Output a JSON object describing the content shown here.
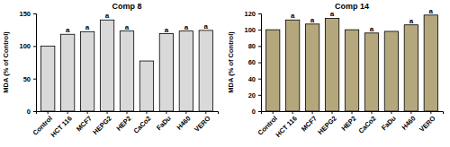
{
  "chart_data": [
    {
      "type": "bar",
      "title": "Comp 8",
      "y_label": "MDA (% of Control)",
      "categories": [
        "Control",
        "HCT 116",
        "MCF7",
        "HEPG2",
        "HEP2",
        "CaCo2",
        "FaDu",
        "H460",
        "VERO"
      ],
      "values": [
        100,
        118,
        122,
        140,
        123,
        77,
        119,
        123,
        124
      ],
      "annotations": [
        null,
        "a",
        "a",
        "a",
        "a",
        null,
        "a",
        "a",
        "a"
      ],
      "color": "#d9d9d9",
      "ylim": [
        0,
        150
      ],
      "yticks": [
        0,
        50,
        100,
        150
      ],
      "grid": false
    },
    {
      "type": "bar",
      "title": "Comp 14",
      "y_label": "MDA (% of Control)",
      "categories": [
        "Control",
        "HCT 116",
        "MCF7",
        "HEPG2",
        "HEP2",
        "CaCo2",
        "FaDu",
        "H460",
        "VERO"
      ],
      "values": [
        100,
        112,
        107,
        114,
        100,
        96,
        98,
        106,
        118
      ],
      "annotations": [
        null,
        "a",
        "a",
        "a",
        null,
        "a",
        null,
        "a",
        "a"
      ],
      "color": "#b5a77c",
      "ylim": [
        0,
        120
      ],
      "yticks": [
        0,
        20,
        40,
        60,
        80,
        100,
        120
      ],
      "grid": false
    }
  ]
}
